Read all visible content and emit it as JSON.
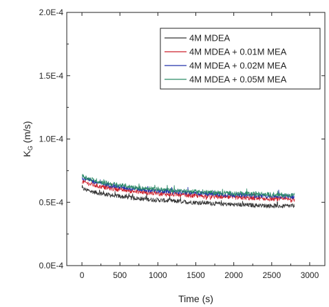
{
  "chart_data": {
    "type": "line",
    "xlabel": "Time (s)",
    "ylabel_main": "K",
    "ylabel_sub": "G",
    "ylabel_unit": " (m/s)",
    "xlim": [
      -200,
      3200
    ],
    "ylim": [
      0,
      0.0002
    ],
    "x_ticks": [
      0,
      500,
      1000,
      1500,
      2000,
      2500,
      3000
    ],
    "x_tick_labels": [
      "0",
      "500",
      "1000",
      "1500",
      "2000",
      "2500",
      "3000"
    ],
    "y_ticks": [
      0,
      5e-05,
      0.0001,
      0.00015,
      0.0002
    ],
    "y_tick_labels": [
      "0.0E-4",
      "0.5E-4",
      "1.0E-4",
      "1.5E-4",
      "2.0E-4"
    ],
    "legend_position": "top-right",
    "grid": false,
    "x": [
      0,
      100,
      200,
      300,
      400,
      500,
      600,
      700,
      800,
      900,
      1000,
      1100,
      1200,
      1300,
      1400,
      1500,
      1600,
      1700,
      1800,
      1900,
      2000,
      2100,
      2200,
      2300,
      2400,
      2500,
      2600,
      2700,
      2800
    ],
    "series": [
      {
        "name": "4M MDEA",
        "color": "#333333",
        "values": [
          6.1e-05,
          5.9e-05,
          5.75e-05,
          5.65e-05,
          5.55e-05,
          5.47e-05,
          5.4e-05,
          5.33e-05,
          5.27e-05,
          5.22e-05,
          5.18e-05,
          5.14e-05,
          5.1e-05,
          5.06e-05,
          5.02e-05,
          4.99e-05,
          4.96e-05,
          4.93e-05,
          4.88e-05,
          4.85e-05,
          4.83e-05,
          4.8e-05,
          4.78e-05,
          4.76e-05,
          4.74e-05,
          4.73e-05,
          4.71e-05,
          4.7e-05,
          4.72e-05
        ]
      },
      {
        "name": "4M MDEA + 0.01M MEA",
        "color": "#cc1f2a",
        "values": [
          6.65e-05,
          6.45e-05,
          6.3e-05,
          6.18e-05,
          6.08e-05,
          6e-05,
          5.92e-05,
          5.85e-05,
          5.79e-05,
          5.74e-05,
          5.69e-05,
          5.65e-05,
          5.61e-05,
          5.57e-05,
          5.54e-05,
          5.51e-05,
          5.48e-05,
          5.45e-05,
          5.42e-05,
          5.4e-05,
          5.37e-05,
          5.35e-05,
          5.33e-05,
          5.31e-05,
          5.29e-05,
          5.27e-05,
          5.25e-05,
          5.23e-05,
          5.2e-05
        ]
      },
      {
        "name": "4M MDEA + 0.02M MEA",
        "color": "#2233aa",
        "values": [
          6.95e-05,
          6.72e-05,
          6.56e-05,
          6.43e-05,
          6.32e-05,
          6.22e-05,
          6.13e-05,
          6.06e-05,
          6e-05,
          5.95e-05,
          5.9e-05,
          5.86e-05,
          5.82e-05,
          5.78e-05,
          5.75e-05,
          5.72e-05,
          5.69e-05,
          5.66e-05,
          5.63e-05,
          5.61e-05,
          5.59e-05,
          5.57e-05,
          5.55e-05,
          5.53e-05,
          5.51e-05,
          5.49e-05,
          5.48e-05,
          5.46e-05,
          5.45e-05
        ]
      },
      {
        "name": "4M MDEA + 0.05M MEA",
        "color": "#2a8a66",
        "values": [
          7.1e-05,
          6.85e-05,
          6.68e-05,
          6.55e-05,
          6.44e-05,
          6.34e-05,
          6.26e-05,
          6.19e-05,
          6.12e-05,
          6.07e-05,
          6.02e-05,
          5.98e-05,
          5.94e-05,
          5.9e-05,
          5.87e-05,
          5.84e-05,
          5.81e-05,
          5.78e-05,
          5.76e-05,
          5.73e-05,
          5.71e-05,
          5.69e-05,
          5.67e-05,
          5.65e-05,
          5.63e-05,
          5.62e-05,
          5.6e-05,
          5.58e-05,
          5.57e-05
        ]
      }
    ]
  }
}
